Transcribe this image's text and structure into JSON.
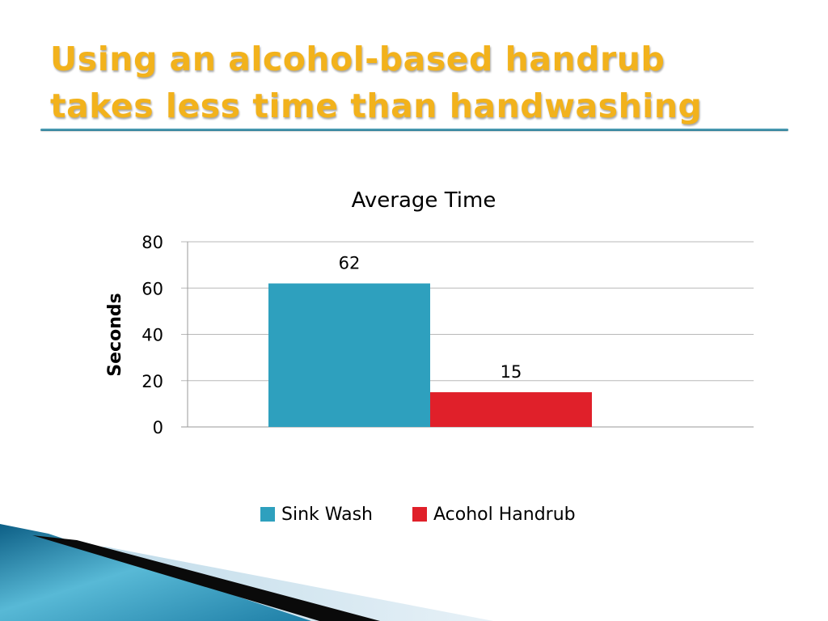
{
  "slide": {
    "title_lines": [
      "Using an alcohol-based handrub",
      "takes less time than handwashing"
    ]
  },
  "colors": {
    "title": "#f2b21c",
    "sink_wash": "#2ea0be",
    "handrub": "#e0202a",
    "gridline": "#b8b8b8"
  },
  "chart_data": {
    "type": "bar",
    "title": "Average Time",
    "ylabel": "Seconds",
    "xlabel": "",
    "ylim": [
      0,
      80
    ],
    "yticks": [
      0,
      20,
      40,
      60,
      80
    ],
    "grid": true,
    "legend_position": "bottom",
    "categories": [
      ""
    ],
    "series": [
      {
        "name": "Sink Wash",
        "values": [
          62
        ],
        "color": "#2ea0be"
      },
      {
        "name": "Acohol Handrub",
        "values": [
          15
        ],
        "color": "#e0202a"
      }
    ]
  }
}
